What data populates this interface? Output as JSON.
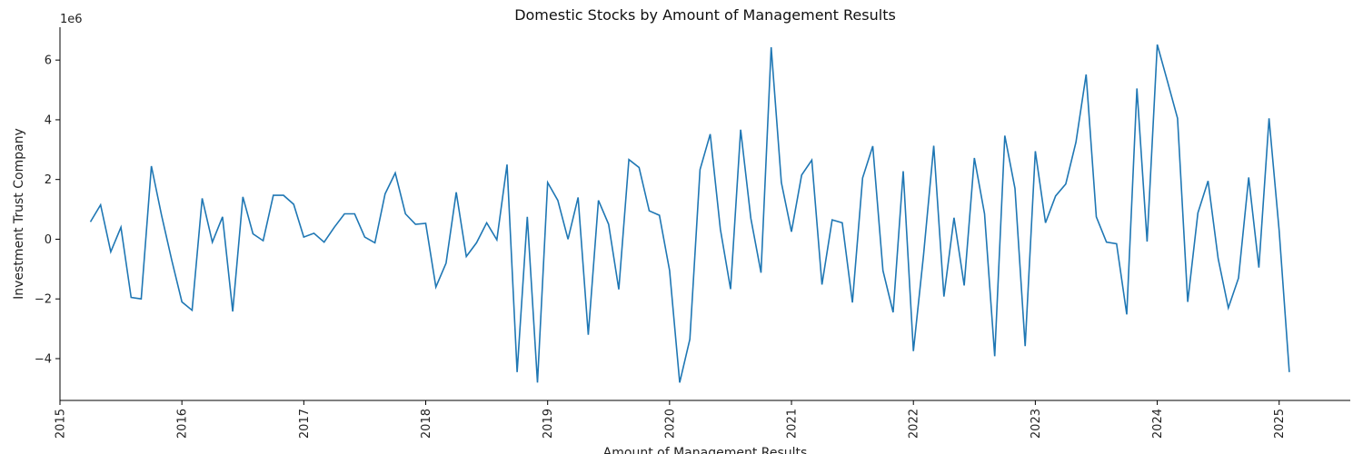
{
  "chart_data": {
    "type": "line",
    "title": "Domestic Stocks by Amount of Management Results",
    "xlabel": "Amount of Management Results",
    "ylabel": "Investment Trust Company",
    "y_offset_label": "1e6",
    "color": "#1f77b4",
    "xlim": [
      "2015-01",
      "2025-08"
    ],
    "ylim": [
      -5.4,
      7.1
    ],
    "x_ticks": [
      "2015",
      "2016",
      "2017",
      "2018",
      "2019",
      "2020",
      "2021",
      "2022",
      "2023",
      "2024",
      "2025"
    ],
    "y_ticks": [
      -4,
      -2,
      0,
      2,
      4,
      6
    ],
    "grid": false,
    "series": [
      {
        "x": [
          "2015-04",
          "2015-05",
          "2015-06",
          "2015-07",
          "2015-08",
          "2015-09",
          "2015-10",
          "2015-11",
          "2015-12",
          "2016-01",
          "2016-02",
          "2016-03",
          "2016-04",
          "2016-05",
          "2016-06",
          "2016-07",
          "2016-08",
          "2016-09",
          "2016-10",
          "2016-11",
          "2016-12",
          "2017-01",
          "2017-02",
          "2017-03",
          "2017-04",
          "2017-05",
          "2017-06",
          "2017-07",
          "2017-08",
          "2017-09",
          "2017-10",
          "2017-11",
          "2017-12",
          "2018-01",
          "2018-02",
          "2018-03",
          "2018-04",
          "2018-05",
          "2018-06",
          "2018-07",
          "2018-08",
          "2018-09",
          "2018-10",
          "2018-11",
          "2018-12",
          "2019-01",
          "2019-02",
          "2019-03",
          "2019-04",
          "2019-05",
          "2019-06",
          "2019-07",
          "2019-08",
          "2019-09",
          "2019-10",
          "2019-11",
          "2019-12",
          "2020-01",
          "2020-02",
          "2020-03",
          "2020-04",
          "2020-05",
          "2020-06",
          "2020-07",
          "2020-08",
          "2020-09",
          "2020-10",
          "2020-11",
          "2020-12",
          "2021-01",
          "2021-02",
          "2021-03",
          "2021-04",
          "2021-05",
          "2021-06",
          "2021-07",
          "2021-08",
          "2021-09",
          "2021-10",
          "2021-11",
          "2021-12",
          "2022-01",
          "2022-02",
          "2022-03",
          "2022-04",
          "2022-05",
          "2022-06",
          "2022-07",
          "2022-08",
          "2022-09",
          "2022-10",
          "2022-11",
          "2022-12",
          "2023-01",
          "2023-02",
          "2023-03",
          "2023-04",
          "2023-05",
          "2023-06",
          "2023-07",
          "2023-08",
          "2023-09",
          "2023-10",
          "2023-11",
          "2023-12",
          "2024-01",
          "2024-02",
          "2024-03",
          "2024-04",
          "2024-05",
          "2024-06",
          "2024-07",
          "2024-08",
          "2024-09",
          "2024-10",
          "2024-11",
          "2024-12",
          "2025-01",
          "2025-02"
        ],
        "values": [
          0.58,
          1.15,
          -0.42,
          0.4,
          -1.95,
          -2.0,
          2.45,
          0.8,
          -0.7,
          -2.1,
          -2.38,
          1.37,
          -0.1,
          0.75,
          -2.42,
          1.42,
          0.18,
          -0.05,
          1.47,
          1.47,
          1.17,
          0.07,
          0.2,
          -0.1,
          0.4,
          0.85,
          0.85,
          0.07,
          -0.12,
          1.52,
          2.22,
          0.85,
          0.5,
          0.53,
          -1.6,
          -0.8,
          1.57,
          -0.58,
          -0.12,
          0.55,
          -0.02,
          2.5,
          -4.45,
          0.75,
          -4.8,
          1.9,
          1.3,
          0.0,
          1.4,
          -3.2,
          1.3,
          0.5,
          -1.68,
          2.67,
          2.4,
          0.95,
          0.8,
          -1.05,
          -4.8,
          -3.35,
          2.33,
          3.52,
          0.33,
          -1.67,
          3.67,
          0.7,
          -1.12,
          6.43,
          1.9,
          0.25,
          2.15,
          2.65,
          -1.52,
          0.65,
          0.55,
          -2.12,
          2.05,
          3.12,
          -1.05,
          -2.45,
          2.28,
          -3.75,
          -0.52,
          3.13,
          -1.92,
          0.72,
          -1.55,
          2.72,
          0.85,
          -3.92,
          3.47,
          1.7,
          -3.58,
          2.95,
          0.55,
          1.45,
          1.85,
          3.25,
          5.52,
          0.75,
          -0.1,
          -0.15,
          -2.52,
          5.05,
          -0.08,
          6.52,
          5.3,
          4.05,
          -2.1,
          0.88,
          1.95,
          -0.65,
          -2.3,
          -1.3,
          2.07,
          -0.95,
          4.05,
          0.3,
          -4.45
        ]
      }
    ]
  }
}
